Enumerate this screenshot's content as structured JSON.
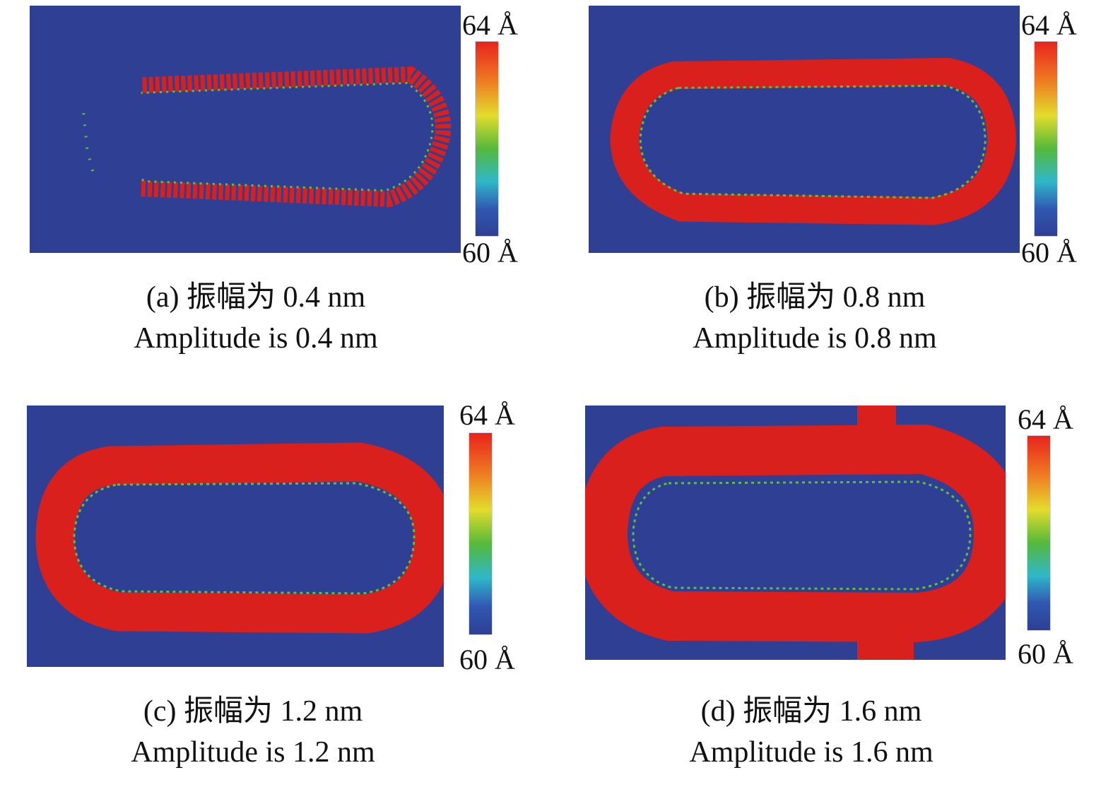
{
  "panels": [
    {
      "id": "a",
      "amplitude_nm": 0.4,
      "caption_cn": "(a) 振幅为 0.4 nm",
      "caption_en": "Amplitude is 0.4 nm",
      "scale_max": "64 Å",
      "scale_min": "60 Å"
    },
    {
      "id": "b",
      "amplitude_nm": 0.8,
      "caption_cn": "(b) 振幅为 0.8 nm",
      "caption_en": "Amplitude is 0.8 nm",
      "scale_max": "64 Å",
      "scale_min": "60 Å"
    },
    {
      "id": "c",
      "amplitude_nm": 1.2,
      "caption_cn": "(c) 振幅为 1.2 nm",
      "caption_en": "Amplitude is 1.2 nm",
      "scale_max": "64 Å",
      "scale_min": "60 Å"
    },
    {
      "id": "d",
      "amplitude_nm": 1.6,
      "caption_cn": "(d) 振幅为 1.6 nm",
      "caption_en": "Amplitude is 1.6 nm",
      "scale_max": "64 Å",
      "scale_min": "60 Å"
    }
  ],
  "colors": {
    "background_blue": "#2e3f94",
    "ring_red": "#d9201c",
    "scale_top": "#e8231d",
    "scale_mid": "#55b93a",
    "scale_bottom": "#2e3f94"
  }
}
